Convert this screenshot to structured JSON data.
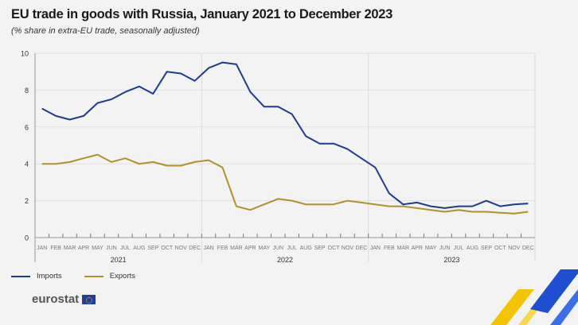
{
  "title": "EU trade in goods with Russia, January 2021 to December 2023",
  "subtitle": "(% share in extra-EU trade, seasonally adjusted)",
  "logo": "eurostat",
  "colors": {
    "imports": "#1f3a8f",
    "exports": "#b0922a",
    "background": "#f3f3f3"
  },
  "chart_data": {
    "type": "line",
    "months": [
      "JAN",
      "FEB",
      "MAR",
      "APR",
      "MAY",
      "JUN",
      "JUL",
      "AUG",
      "SEP",
      "OCT",
      "NOV",
      "DEC"
    ],
    "years": [
      "2021",
      "2022",
      "2023"
    ],
    "ylim": [
      0,
      10
    ],
    "yticks": [
      "0",
      "2",
      "4",
      "6",
      "8",
      "10"
    ],
    "grid": true,
    "legend_position": "bottom-left",
    "series": [
      {
        "name": "Imports",
        "values": [
          7.0,
          6.6,
          6.4,
          6.6,
          7.3,
          7.5,
          7.9,
          8.2,
          7.8,
          9.0,
          8.9,
          8.5,
          9.2,
          9.5,
          9.4,
          7.9,
          7.1,
          7.1,
          6.7,
          5.5,
          5.1,
          5.1,
          4.8,
          4.3,
          3.8,
          2.4,
          1.8,
          1.9,
          1.7,
          1.6,
          1.7,
          1.7,
          2.0,
          1.7,
          1.8,
          1.85
        ]
      },
      {
        "name": "Exports",
        "values": [
          4.0,
          4.0,
          4.1,
          4.3,
          4.5,
          4.1,
          4.3,
          4.0,
          4.1,
          3.9,
          3.9,
          4.1,
          4.2,
          3.8,
          1.7,
          1.5,
          1.8,
          2.1,
          2.0,
          1.8,
          1.8,
          1.8,
          2.0,
          1.9,
          1.8,
          1.7,
          1.7,
          1.6,
          1.5,
          1.4,
          1.5,
          1.4,
          1.4,
          1.35,
          1.3,
          1.4
        ]
      }
    ]
  }
}
